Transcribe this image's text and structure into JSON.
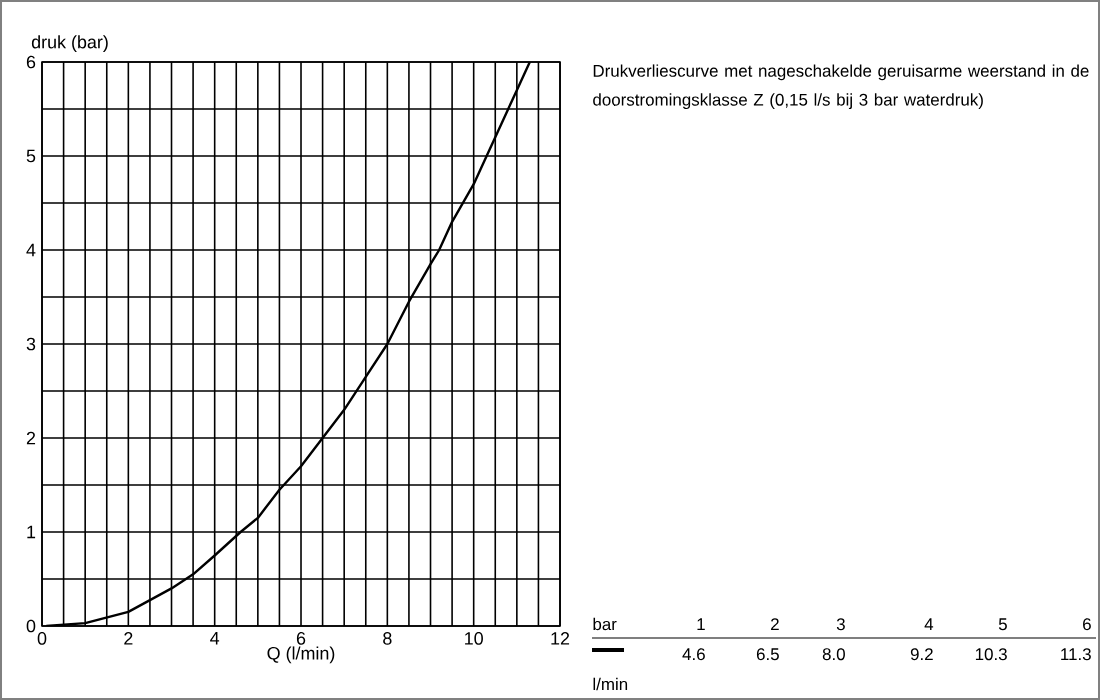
{
  "chart_data": {
    "type": "line",
    "title": "Drukverliescurve met nageschakelde geruisarme weerstand in de doorstromingsklasse Z (0,15 l/s bij 3 bar waterdruk)",
    "xlabel": "Q (l/min)",
    "ylabel": "druk (bar)",
    "x": [
      0.1,
      1,
      2,
      3,
      3.5,
      4,
      4.6,
      5,
      5.5,
      6,
      6.5,
      7,
      7.5,
      8,
      8.5,
      9,
      9.2,
      9.5,
      10,
      10.3,
      10.5,
      11,
      11.3
    ],
    "series": [
      {
        "color": "#000000",
        "values": [
          0,
          0.03,
          0.15,
          0.4,
          0.55,
          0.75,
          1,
          1.15,
          1.45,
          1.7,
          2,
          2.3,
          2.65,
          3,
          3.45,
          3.85,
          4,
          4.3,
          4.7,
          5,
          5.2,
          5.7,
          6
        ]
      }
    ],
    "xlim": [
      0,
      12
    ],
    "ylim": [
      0,
      6
    ],
    "xticks": [
      0,
      2,
      4,
      6,
      8,
      10,
      12
    ],
    "yticks": [
      0,
      1,
      2,
      3,
      4,
      5,
      6
    ],
    "grid": true,
    "marker": "none",
    "line_style": "solid",
    "annotations": [
      "bar",
      "1",
      "2",
      "3",
      "4",
      "5",
      "6",
      "4.6",
      "6.5",
      "8.0",
      "9.2",
      "10.3",
      "11.3",
      "l/min"
    ]
  }
}
